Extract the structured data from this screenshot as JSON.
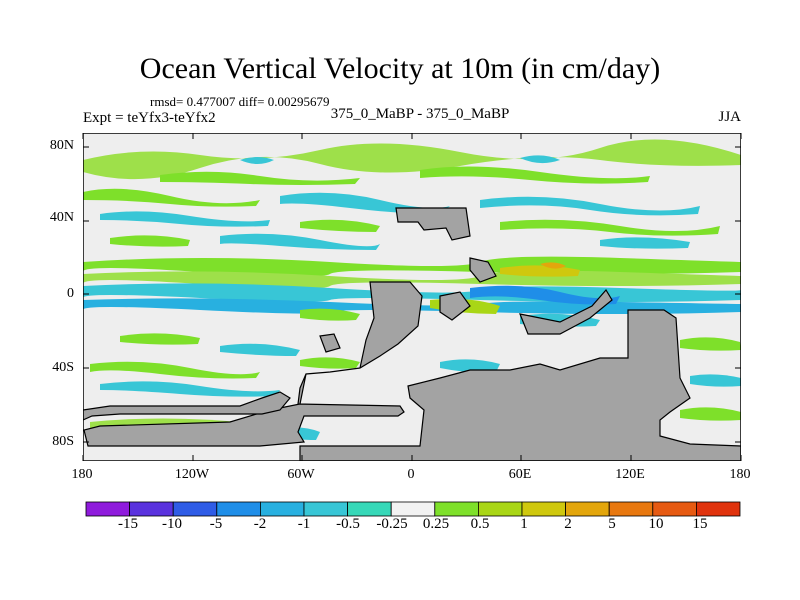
{
  "title": "Ocean Vertical Velocity at 10m (in cm/day)",
  "stats": "rmsd= 0.477007 diff= 0.00295679",
  "expt": "Expt = teYfx3-teYfx2",
  "comparison": "375_0_MaBP - 375_0_MaBP",
  "season": "JJA",
  "axes": {
    "lat_ticks": [
      {
        "value": 80,
        "label": "80N"
      },
      {
        "value": 40,
        "label": "40N"
      },
      {
        "value": 0,
        "label": "0"
      },
      {
        "value": -40,
        "label": "40S"
      },
      {
        "value": -80,
        "label": "80S"
      }
    ],
    "lon_ticks": [
      {
        "value": -180,
        "label": "180"
      },
      {
        "value": -120,
        "label": "120W"
      },
      {
        "value": -60,
        "label": "60W"
      },
      {
        "value": 0,
        "label": "0"
      },
      {
        "value": 60,
        "label": "60E"
      },
      {
        "value": 120,
        "label": "120E"
      },
      {
        "value": 180,
        "label": "180"
      }
    ],
    "lat_range": [
      -90,
      90
    ],
    "lon_range": [
      -180,
      180
    ]
  },
  "colorbar": {
    "labels": [
      "-15",
      "-10",
      "-5",
      "-2",
      "-1",
      "-0.5",
      "-0.25",
      "0.25",
      "0.5",
      "1",
      "2",
      "5",
      "10",
      "15"
    ],
    "colors": [
      "#8f1bdc",
      "#5a32de",
      "#2f5ce6",
      "#1f8ee8",
      "#28b0e0",
      "#38c6d6",
      "#36d8b8",
      "#f2f2f2",
      "#7ee02a",
      "#a9d616",
      "#cfc80e",
      "#e3a60c",
      "#e8780f",
      "#e65a12",
      "#e0330d"
    ]
  },
  "colors": {
    "land": "#a3a3a3",
    "ocean_neutral": "#eeeeee",
    "coast": "#000000"
  }
}
